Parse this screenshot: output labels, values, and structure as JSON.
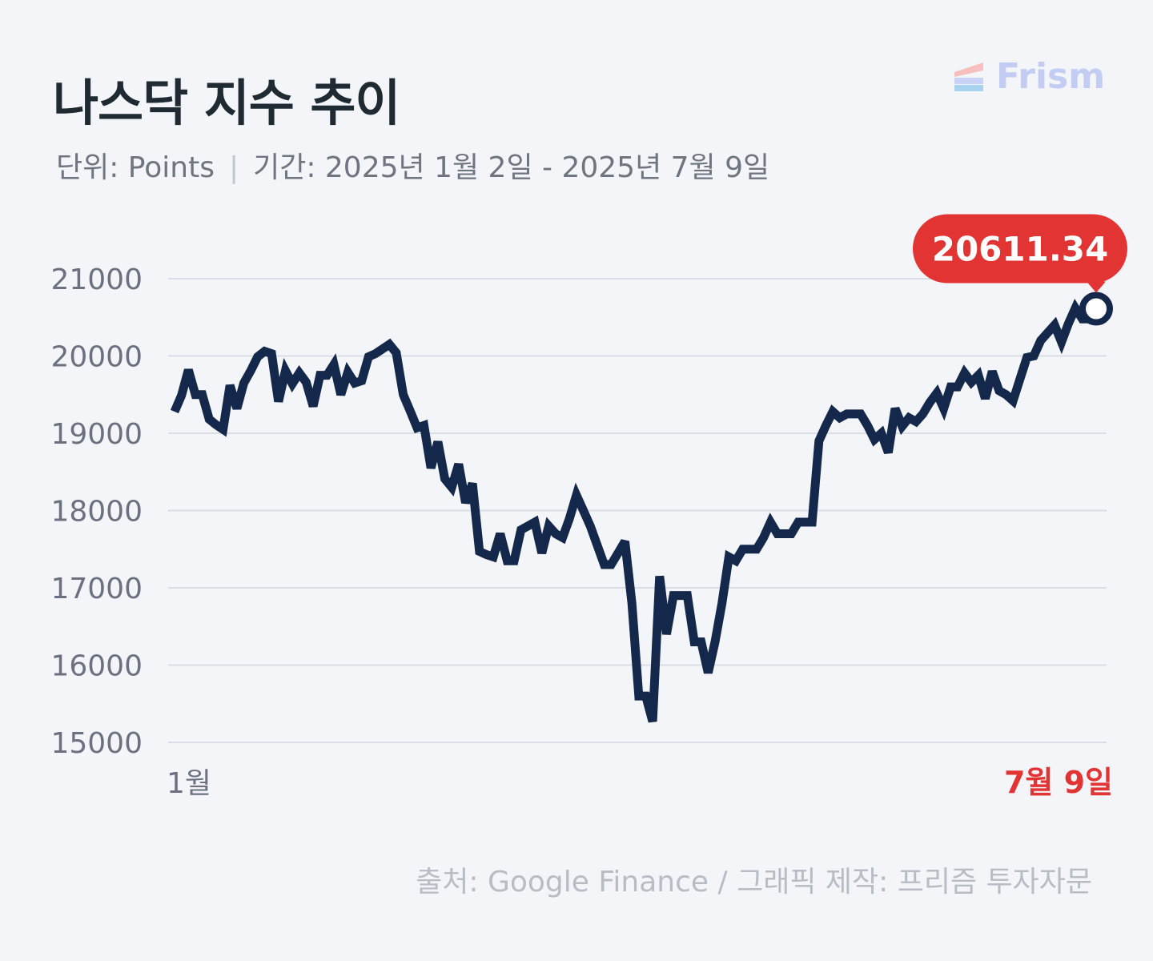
{
  "header": {
    "title": "나스닥 지수 추이",
    "unit": "단위: Points",
    "separator": "|",
    "period": "기간: 2025년 1월 2일 - 2025년 7월 9일"
  },
  "logo": {
    "text": "Frism",
    "icon": "stacked-bars-logo-icon"
  },
  "footer": {
    "source": "출처: Google Finance  / 그래픽 제작: 프리즘 투자자문"
  },
  "colors": {
    "line": "#14284b",
    "accent": "#e33434",
    "grid": "#d9dde5",
    "axis_text": "#6b7180"
  },
  "chart_data": {
    "type": "line",
    "title": "나스닥 지수 추이",
    "xlabel": "",
    "ylabel": "",
    "ylim": [
      15000,
      21000
    ],
    "yticks": [
      21000,
      20000,
      19000,
      18000,
      17000,
      16000,
      15000
    ],
    "grid": true,
    "x_labels": {
      "start": "1월",
      "end": "7월 9일"
    },
    "last_value_label": "20611.34",
    "series": [
      {
        "values": [
          19280,
          19490,
          19820,
          19500,
          19500,
          19180,
          19110,
          19050,
          19620,
          19320,
          19650,
          19810,
          19990,
          20060,
          20030,
          19410,
          19810,
          19640,
          19780,
          19660,
          19350,
          19750,
          19750,
          19890,
          19500,
          19790,
          19650,
          19680,
          19990,
          20030,
          20090,
          20150,
          20040,
          19500,
          19290,
          19070,
          19100,
          18550,
          18890,
          18410,
          18300,
          18600,
          18100,
          18350,
          17470,
          17430,
          17400,
          17700,
          17350,
          17350,
          17750,
          17800,
          17850,
          17450,
          17800,
          17700,
          17650,
          17900,
          18200,
          18000,
          17800,
          17550,
          17300,
          17300,
          17450,
          17600,
          16800,
          15600,
          15600,
          15270,
          17150,
          16400,
          16900,
          16900,
          16900,
          16300,
          16300,
          15900,
          16300,
          16800,
          17400,
          17350,
          17500,
          17500,
          17500,
          17650,
          17850,
          17700,
          17700,
          17700,
          17850,
          17850,
          17850,
          18900,
          19100,
          19280,
          19200,
          19250,
          19250,
          19250,
          19100,
          18920,
          19000,
          18750,
          19320,
          19090,
          19200,
          19150,
          19250,
          19400,
          19520,
          19320,
          19600,
          19600,
          19780,
          19660,
          19750,
          19450,
          19800,
          19550,
          19500,
          19420,
          19700,
          19980,
          20000,
          20200,
          20300,
          20400,
          20180,
          20420,
          20620,
          20480,
          20480,
          20611.34
        ]
      }
    ]
  }
}
